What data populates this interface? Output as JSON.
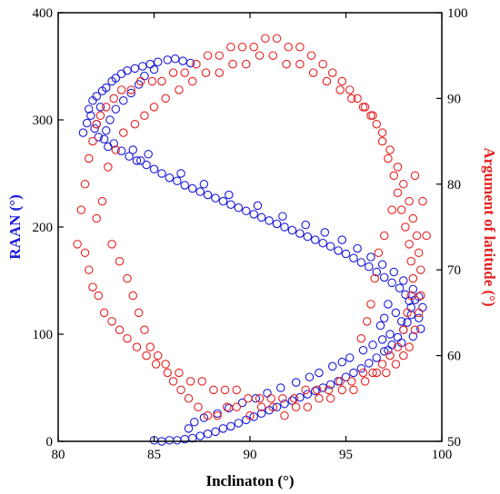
{
  "chart_data": {
    "type": "scatter",
    "xlabel": "Inclinaton (°)",
    "ylabel_left": "RAAN (°)",
    "ylabel_right": "Argument of latitude (°)",
    "xlim": [
      80,
      100
    ],
    "ylim_left": [
      0,
      400
    ],
    "ylim_right": [
      50,
      100
    ],
    "x_ticks": [
      80,
      85,
      90,
      95,
      100
    ],
    "y_ticks_left": [
      0,
      100,
      200,
      300,
      400
    ],
    "y_ticks_right": [
      50,
      60,
      70,
      80,
      90,
      100
    ],
    "grid": false,
    "marker": "open-circle",
    "series": [
      {
        "axis": "left",
        "color": "#1a1adb",
        "points": [
          [
            81.3,
            288
          ],
          [
            81.5,
            297
          ],
          [
            81.6,
            310
          ],
          [
            81.8,
            318
          ],
          [
            81.7,
            304
          ],
          [
            82.0,
            296
          ],
          [
            82.0,
            322
          ],
          [
            82.3,
            327
          ],
          [
            82.2,
            312
          ],
          [
            82.5,
            330
          ],
          [
            82.8,
            336
          ],
          [
            83.0,
            339
          ],
          [
            83.3,
            343
          ],
          [
            83.6,
            346
          ],
          [
            84.0,
            348
          ],
          [
            84.4,
            350
          ],
          [
            84.8,
            352
          ],
          [
            85.2,
            354
          ],
          [
            85.7,
            356
          ],
          [
            86.1,
            357
          ],
          [
            86.5,
            355
          ],
          [
            86.9,
            353
          ],
          [
            85.0,
            347
          ],
          [
            84.5,
            341
          ],
          [
            84.2,
            333
          ],
          [
            83.8,
            325
          ],
          [
            83.4,
            318
          ],
          [
            83.0,
            310
          ],
          [
            82.7,
            300
          ],
          [
            82.5,
            290
          ],
          [
            82.4,
            282
          ],
          [
            82.6,
            275
          ],
          [
            82.9,
            278
          ],
          [
            83.3,
            271
          ],
          [
            83.7,
            266
          ],
          [
            84.1,
            262
          ],
          [
            84.6,
            258
          ],
          [
            85.0,
            254
          ],
          [
            85.4,
            250
          ],
          [
            85.8,
            246
          ],
          [
            86.2,
            243
          ],
          [
            86.6,
            239
          ],
          [
            87.0,
            236
          ],
          [
            87.4,
            233
          ],
          [
            87.8,
            230
          ],
          [
            88.2,
            227
          ],
          [
            88.6,
            224
          ],
          [
            89.0,
            221
          ],
          [
            89.4,
            218
          ],
          [
            89.8,
            215
          ],
          [
            90.2,
            212
          ],
          [
            90.6,
            209
          ],
          [
            91.0,
            206
          ],
          [
            91.4,
            203
          ],
          [
            91.8,
            200
          ],
          [
            92.2,
            197
          ],
          [
            92.6,
            194
          ],
          [
            93.0,
            191
          ],
          [
            93.4,
            188
          ],
          [
            93.8,
            185
          ],
          [
            94.2,
            182
          ],
          [
            94.6,
            178
          ],
          [
            95.0,
            175
          ],
          [
            95.4,
            171
          ],
          [
            95.8,
            167
          ],
          [
            96.2,
            163
          ],
          [
            96.6,
            158
          ],
          [
            97.0,
            153
          ],
          [
            97.4,
            148
          ],
          [
            97.8,
            143
          ],
          [
            98.1,
            137
          ],
          [
            98.3,
            131
          ],
          [
            98.4,
            125
          ],
          [
            98.4,
            118
          ],
          [
            98.2,
            111
          ],
          [
            98.0,
            104
          ],
          [
            97.7,
            97
          ],
          [
            97.4,
            90
          ],
          [
            97.0,
            84
          ],
          [
            96.6,
            78
          ],
          [
            96.2,
            73
          ],
          [
            95.8,
            68
          ],
          [
            95.4,
            64
          ],
          [
            95.0,
            60
          ],
          [
            94.6,
            56
          ],
          [
            94.2,
            53
          ],
          [
            93.8,
            50
          ],
          [
            93.4,
            47
          ],
          [
            93.0,
            44
          ],
          [
            92.6,
            41
          ],
          [
            92.2,
            38
          ],
          [
            91.8,
            35
          ],
          [
            91.4,
            32
          ],
          [
            91.0,
            29
          ],
          [
            90.6,
            26
          ],
          [
            90.2,
            23
          ],
          [
            89.8,
            20
          ],
          [
            89.4,
            17
          ],
          [
            89.0,
            14
          ],
          [
            88.6,
            12
          ],
          [
            88.2,
            9
          ],
          [
            87.8,
            7
          ],
          [
            87.4,
            5
          ],
          [
            87.0,
            3
          ],
          [
            86.6,
            2
          ],
          [
            86.2,
            1
          ],
          [
            85.8,
            1
          ],
          [
            85.4,
            0
          ],
          [
            85.0,
            1
          ],
          [
            97.2,
            128
          ],
          [
            97.6,
            120
          ],
          [
            97.0,
            115
          ],
          [
            96.8,
            108
          ],
          [
            97.9,
            112
          ],
          [
            98.6,
            132
          ],
          [
            98.8,
            115
          ],
          [
            97.3,
            100
          ],
          [
            96.9,
            95
          ],
          [
            96.4,
            90
          ],
          [
            95.9,
            85
          ],
          [
            95.2,
            78
          ],
          [
            94.8,
            74
          ],
          [
            94.3,
            70
          ],
          [
            93.6,
            64
          ],
          [
            93.1,
            60
          ],
          [
            92.4,
            55
          ],
          [
            91.6,
            50
          ],
          [
            90.9,
            45
          ],
          [
            90.3,
            40
          ],
          [
            89.6,
            36
          ],
          [
            88.9,
            31
          ],
          [
            88.3,
            26
          ],
          [
            87.6,
            22
          ],
          [
            87.1,
            18
          ],
          [
            86.8,
            12
          ],
          [
            84.3,
            262
          ],
          [
            83.9,
            272
          ],
          [
            82.1,
            284
          ],
          [
            81.9,
            292
          ],
          [
            84.7,
            268
          ],
          [
            86.4,
            250
          ],
          [
            87.6,
            240
          ],
          [
            88.9,
            230
          ],
          [
            90.4,
            220
          ],
          [
            91.7,
            210
          ],
          [
            92.9,
            202
          ],
          [
            93.9,
            195
          ],
          [
            94.8,
            188
          ],
          [
            95.6,
            180
          ],
          [
            96.3,
            172
          ],
          [
            96.9,
            165
          ],
          [
            97.5,
            158
          ],
          [
            98.0,
            150
          ],
          [
            98.5,
            142
          ],
          [
            98.8,
            135
          ],
          [
            99.0,
            125
          ],
          [
            98.9,
            105
          ],
          [
            98.5,
            98
          ],
          [
            97.9,
            92
          ],
          [
            97.2,
            85
          ]
        ]
      },
      {
        "axis": "right",
        "color": "#e62020",
        "points": [
          [
            81.0,
            73
          ],
          [
            81.2,
            77
          ],
          [
            81.4,
            80
          ],
          [
            81.6,
            83
          ],
          [
            81.8,
            85
          ],
          [
            82.0,
            87
          ],
          [
            82.2,
            88
          ],
          [
            82.5,
            89
          ],
          [
            82.9,
            90
          ],
          [
            83.3,
            91
          ],
          [
            83.8,
            91
          ],
          [
            84.3,
            92
          ],
          [
            84.9,
            92
          ],
          [
            85.4,
            92
          ],
          [
            86.0,
            93
          ],
          [
            86.6,
            93
          ],
          [
            87.2,
            94
          ],
          [
            87.8,
            95
          ],
          [
            88.4,
            95
          ],
          [
            89.0,
            96
          ],
          [
            89.6,
            96
          ],
          [
            90.2,
            96
          ],
          [
            90.8,
            97
          ],
          [
            91.4,
            97
          ],
          [
            92.0,
            96
          ],
          [
            92.6,
            96
          ],
          [
            93.2,
            95
          ],
          [
            93.8,
            94
          ],
          [
            94.3,
            93
          ],
          [
            94.8,
            92
          ],
          [
            95.2,
            91
          ],
          [
            95.6,
            90
          ],
          [
            96.0,
            89
          ],
          [
            96.3,
            88
          ],
          [
            96.6,
            87
          ],
          [
            96.9,
            85
          ],
          [
            97.2,
            83
          ],
          [
            97.5,
            81
          ],
          [
            97.7,
            79
          ],
          [
            97.9,
            77
          ],
          [
            98.1,
            75
          ],
          [
            98.3,
            73
          ],
          [
            98.4,
            71
          ],
          [
            98.5,
            69
          ],
          [
            98.4,
            67
          ],
          [
            98.2,
            65
          ],
          [
            98.0,
            63
          ],
          [
            97.7,
            61
          ],
          [
            97.3,
            60
          ],
          [
            96.9,
            59
          ],
          [
            96.4,
            58
          ],
          [
            95.9,
            58
          ],
          [
            95.3,
            57
          ],
          [
            94.7,
            57
          ],
          [
            94.1,
            56
          ],
          [
            93.5,
            56
          ],
          [
            92.9,
            56
          ],
          [
            92.3,
            55
          ],
          [
            91.7,
            55
          ],
          [
            91.1,
            55
          ],
          [
            90.5,
            55
          ],
          [
            89.9,
            55
          ],
          [
            89.3,
            56
          ],
          [
            88.7,
            56
          ],
          [
            88.1,
            56
          ],
          [
            87.5,
            57
          ],
          [
            86.9,
            57
          ],
          [
            86.3,
            58
          ],
          [
            85.7,
            58
          ],
          [
            85.1,
            59
          ],
          [
            84.6,
            60
          ],
          [
            84.1,
            61
          ],
          [
            83.6,
            62
          ],
          [
            83.2,
            63
          ],
          [
            82.8,
            64
          ],
          [
            82.4,
            65
          ],
          [
            82.1,
            67
          ],
          [
            81.8,
            68
          ],
          [
            81.6,
            70
          ],
          [
            81.4,
            72
          ],
          [
            82.0,
            76
          ],
          [
            82.3,
            78
          ],
          [
            82.6,
            82
          ],
          [
            83.0,
            84
          ],
          [
            83.4,
            86
          ],
          [
            82.8,
            73
          ],
          [
            83.2,
            71
          ],
          [
            83.6,
            69
          ],
          [
            83.9,
            67
          ],
          [
            84.2,
            65
          ],
          [
            84.5,
            63
          ],
          [
            84.8,
            61
          ],
          [
            85.2,
            60
          ],
          [
            85.6,
            59
          ],
          [
            86.0,
            57
          ],
          [
            86.4,
            56
          ],
          [
            86.8,
            55
          ],
          [
            87.3,
            54
          ],
          [
            87.8,
            53
          ],
          [
            88.3,
            53
          ],
          [
            88.8,
            54
          ],
          [
            89.3,
            54
          ],
          [
            90.0,
            53
          ],
          [
            90.6,
            54
          ],
          [
            91.2,
            54
          ],
          [
            91.8,
            53
          ],
          [
            92.4,
            54
          ],
          [
            93.0,
            54
          ],
          [
            93.6,
            55
          ],
          [
            94.2,
            55
          ],
          [
            94.8,
            56
          ],
          [
            95.4,
            56
          ],
          [
            96.0,
            57
          ],
          [
            96.6,
            58
          ],
          [
            97.1,
            58
          ],
          [
            97.6,
            59
          ],
          [
            98.0,
            60
          ],
          [
            98.3,
            61
          ],
          [
            98.6,
            63
          ],
          [
            98.8,
            65
          ],
          [
            98.9,
            67
          ],
          [
            98.9,
            70
          ],
          [
            98.8,
            72
          ],
          [
            98.7,
            74
          ],
          [
            98.5,
            76
          ],
          [
            98.3,
            78
          ],
          [
            98.0,
            80
          ],
          [
            97.7,
            82
          ],
          [
            97.3,
            84
          ],
          [
            96.9,
            86
          ],
          [
            96.4,
            88
          ],
          [
            95.9,
            89
          ],
          [
            95.3,
            90
          ],
          [
            94.7,
            91
          ],
          [
            94.0,
            92
          ],
          [
            93.3,
            93
          ],
          [
            92.6,
            94
          ],
          [
            91.9,
            94
          ],
          [
            91.2,
            95
          ],
          [
            90.5,
            95
          ],
          [
            89.8,
            94
          ],
          [
            89.1,
            94
          ],
          [
            88.4,
            93
          ],
          [
            87.7,
            93
          ],
          [
            87.0,
            92
          ],
          [
            86.3,
            91
          ],
          [
            85.6,
            90
          ],
          [
            85.0,
            89
          ],
          [
            84.5,
            88
          ],
          [
            84.0,
            87
          ],
          [
            99.2,
            74
          ],
          [
            99.0,
            78
          ],
          [
            98.6,
            81
          ],
          [
            97.4,
            77
          ],
          [
            97.0,
            74
          ],
          [
            96.7,
            72
          ],
          [
            96.5,
            69
          ],
          [
            96.3,
            66
          ],
          [
            96.1,
            64
          ],
          [
            95.8,
            62
          ]
        ]
      }
    ]
  }
}
